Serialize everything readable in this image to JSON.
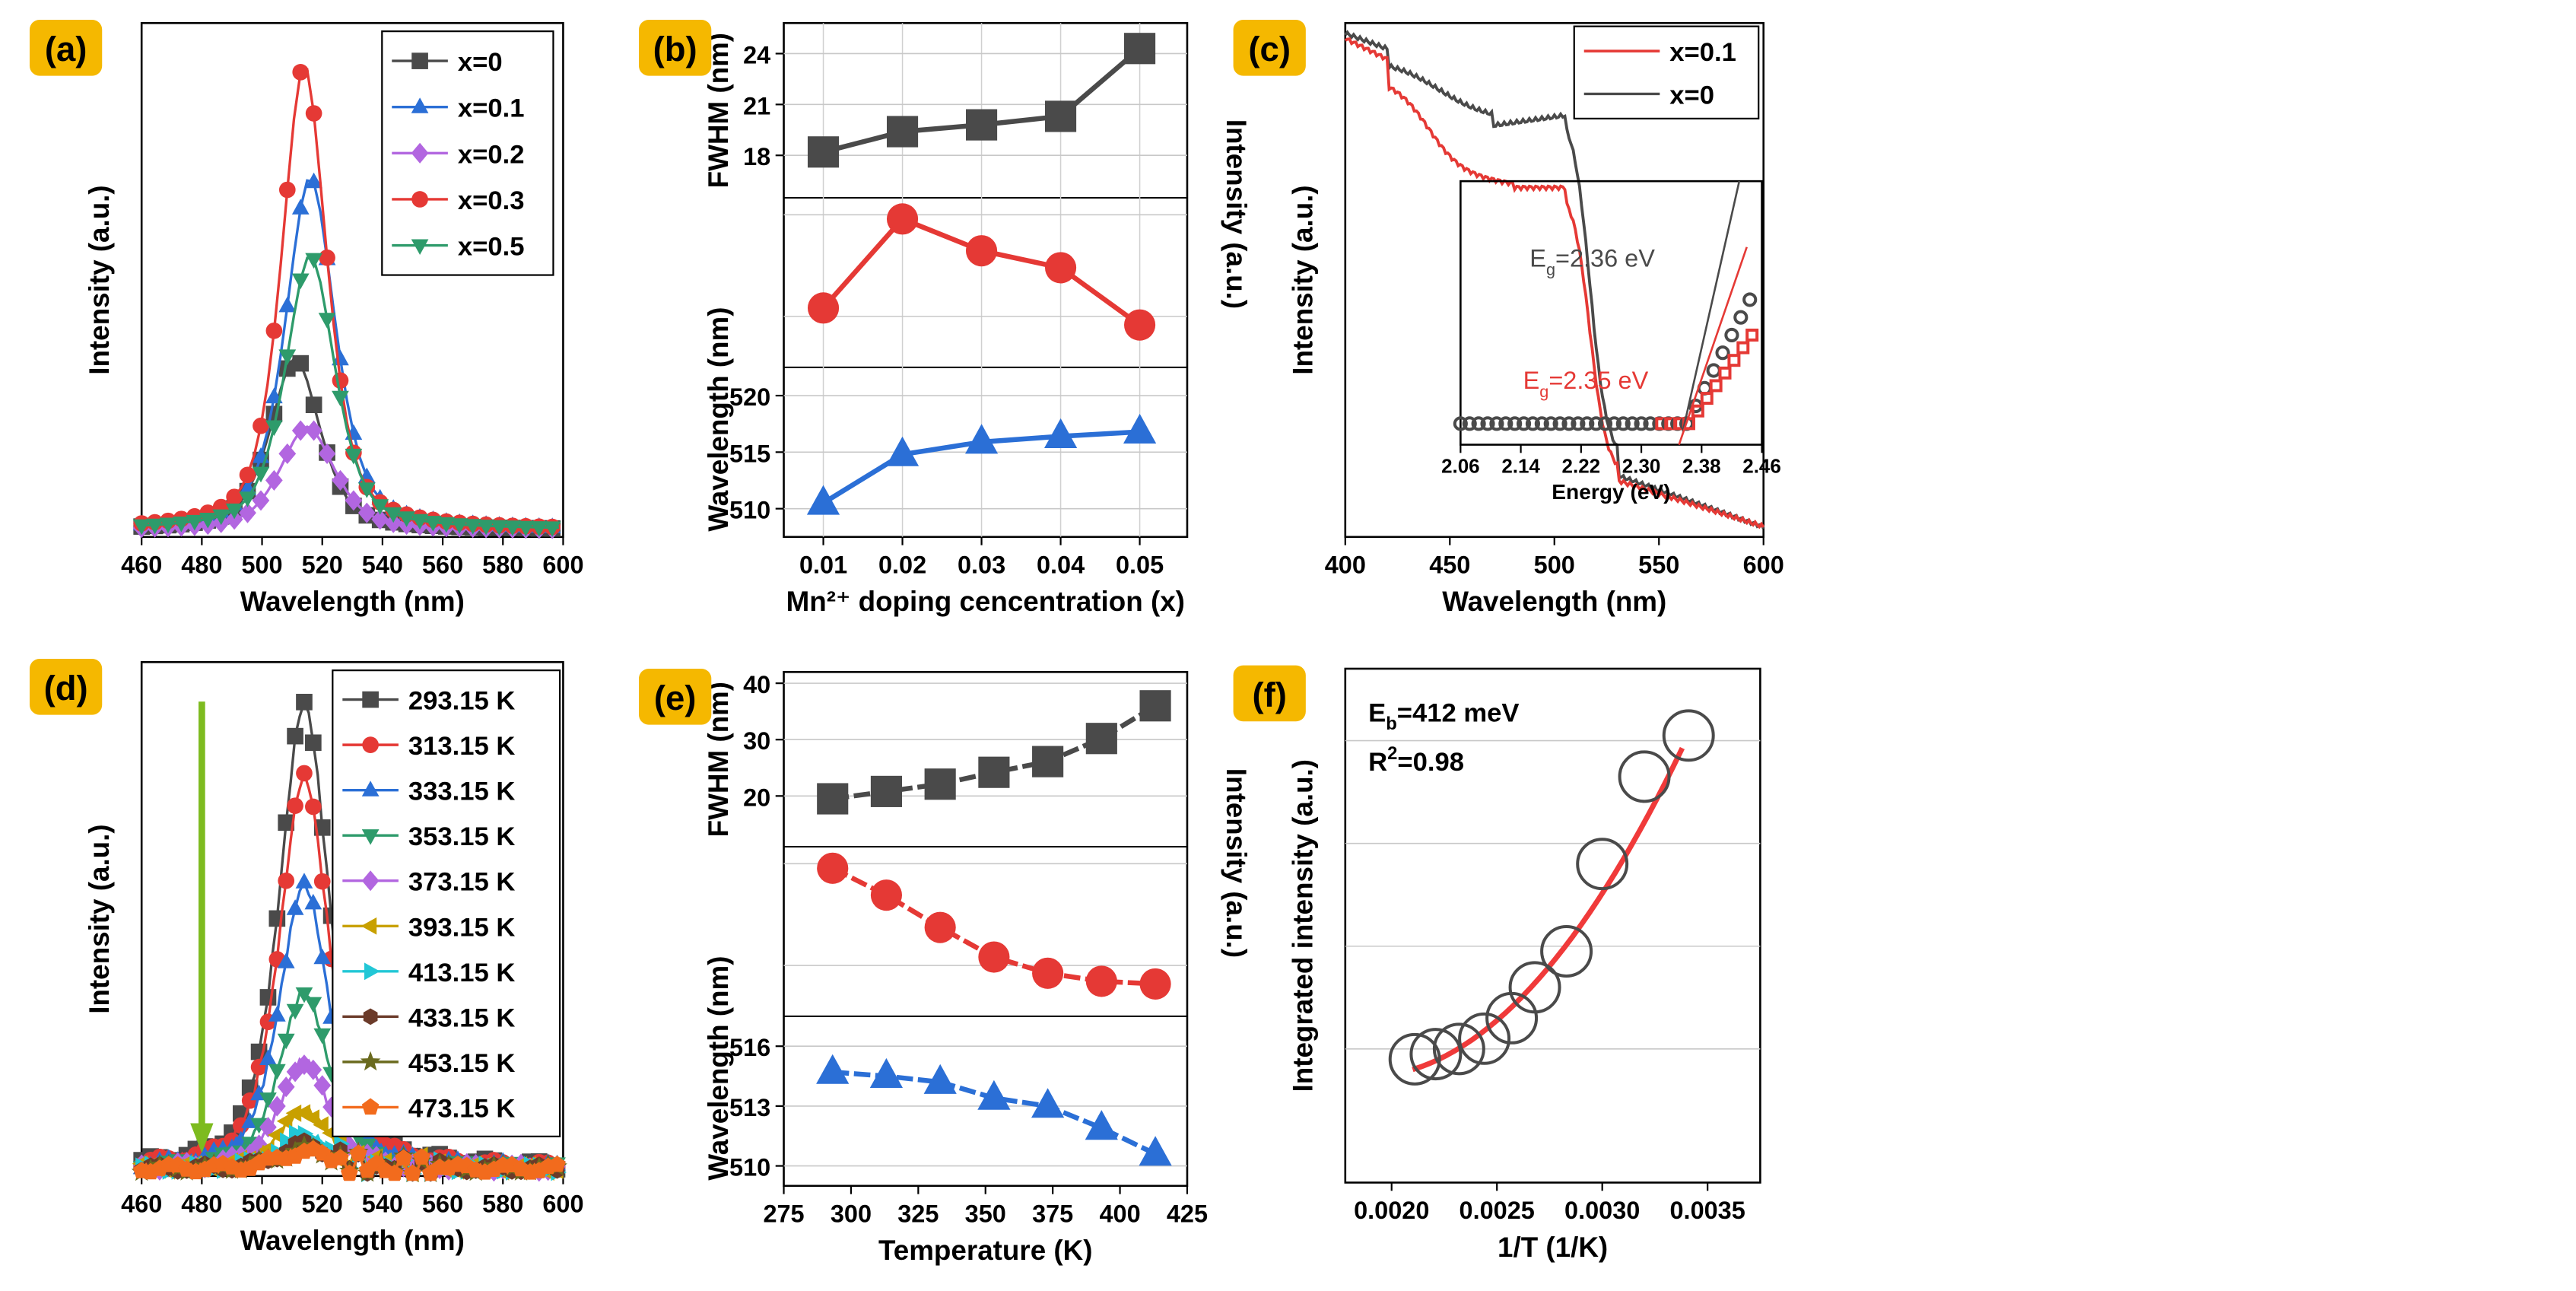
{
  "colors": {
    "black": "#4a4a4a",
    "blue": "#2b6fd6",
    "purple": "#b266e0",
    "red": "#e53935",
    "green": "#2e9b6b",
    "olive": "#c8a000",
    "cyan": "#22c7d6",
    "brown": "#6b3b2a",
    "darkolive": "#6a6a1e",
    "orange": "#f26b1d",
    "fit": "#f03a3a",
    "arrow": "#7dbb1f",
    "labelbg": "#f5b800"
  },
  "chart_data": [
    {
      "panel": "a",
      "label": "(a)",
      "type": "line",
      "xlabel": "Wavelength (nm)",
      "ylabel": "Intensity (a.u.)",
      "xlim": [
        460,
        600
      ],
      "ylim": [
        0,
        1.05
      ],
      "xticks": [
        "460",
        "480",
        "500",
        "520",
        "540",
        "560",
        "580",
        "600"
      ],
      "legend": "top-right",
      "series": [
        {
          "name": "x=0",
          "marker": "square",
          "color": "black",
          "peak": 0.35,
          "center": 511,
          "width": 11
        },
        {
          "name": "x=0.1",
          "marker": "triangle",
          "color": "blue",
          "peak": 0.72,
          "center": 516,
          "width": 11
        },
        {
          "name": "x=0.2",
          "marker": "diamond",
          "color": "purple",
          "peak": 0.21,
          "center": 515,
          "width": 12
        },
        {
          "name": "x=0.3",
          "marker": "circle",
          "color": "red",
          "peak": 0.95,
          "center": 514,
          "width": 10
        },
        {
          "name": "x=0.5",
          "marker": "tri-down",
          "color": "green",
          "peak": 0.56,
          "center": 516,
          "width": 11
        }
      ]
    },
    {
      "panel": "b",
      "label": "(b)",
      "type": "line",
      "xlabel": "Mn²⁺ doping cencentration (x)",
      "ylabel_left_top": "FWHM (nm)",
      "ylabel_left_bottom": "Wavelength (nm)",
      "ylabel_right": "Intensity (a.u.)",
      "x": [
        0.01,
        0.02,
        0.03,
        0.04,
        0.05
      ],
      "xticks": [
        "0.01",
        "0.02",
        "0.03",
        "0.04",
        "0.05"
      ],
      "xlim": [
        0.005,
        0.056
      ],
      "subplots": [
        {
          "name": "FWHM",
          "color": "black",
          "marker": "square",
          "values": [
            18.2,
            19.4,
            19.8,
            20.3,
            24.3
          ],
          "ylim": [
            15.5,
            25.8
          ],
          "yticks": [
            "18",
            "21",
            "24"
          ]
        },
        {
          "name": "Intensity",
          "color": "red",
          "marker": "circle",
          "values": [
            0.58,
            1.0,
            0.85,
            0.77,
            0.5
          ],
          "ylim": [
            0.3,
            1.1
          ],
          "yticks": []
        },
        {
          "name": "Wavelength",
          "color": "blue",
          "marker": "triangle",
          "values": [
            510.5,
            514.8,
            515.9,
            516.4,
            516.8
          ],
          "ylim": [
            507.5,
            522.5
          ],
          "yticks": [
            "510",
            "515",
            "520"
          ]
        }
      ]
    },
    {
      "panel": "c",
      "label": "(c)",
      "type": "line",
      "xlabel": "Wavelength (nm)",
      "ylabel": "Intensity (a.u.)",
      "xlim": [
        400,
        600
      ],
      "xticks": [
        "400",
        "450",
        "500",
        "550",
        "600"
      ],
      "legend": "top-right",
      "series": [
        {
          "name": "x=0.1",
          "color": "red"
        },
        {
          "name": "x=0",
          "color": "black"
        }
      ],
      "inset": {
        "xlabel": "Energy (eV)",
        "xlim": [
          2.06,
          2.46
        ],
        "xticks": [
          "2.06",
          "2.14",
          "2.22",
          "2.30",
          "2.38",
          "2.46"
        ],
        "annotations": [
          {
            "text": "Eg=2.36 eV",
            "main": "E",
            "sub": "g",
            "rest": "=2.36 eV",
            "color": "black"
          },
          {
            "text": "Eg=2.35 eV",
            "main": "E",
            "sub": "g",
            "rest": "=2.35 eV",
            "color": "red"
          }
        ]
      }
    },
    {
      "panel": "d",
      "label": "(d)",
      "type": "line",
      "xlabel": "Wavelength (nm)",
      "ylabel": "Intensity (a.u.)",
      "xlim": [
        460,
        600
      ],
      "ylim": [
        0,
        1.05
      ],
      "xticks": [
        "460",
        "480",
        "500",
        "520",
        "540",
        "560",
        "580",
        "600"
      ],
      "legend": "top-right",
      "series": [
        {
          "name": "293.15 K",
          "marker": "square",
          "color": "black",
          "peak": 0.95
        },
        {
          "name": "313.15 K",
          "marker": "circle",
          "color": "red",
          "peak": 0.8
        },
        {
          "name": "333.15 K",
          "marker": "triangle",
          "color": "blue",
          "peak": 0.58
        },
        {
          "name": "353.15 K",
          "marker": "tri-down",
          "color": "green",
          "peak": 0.36
        },
        {
          "name": "373.15 K",
          "marker": "diamond",
          "color": "purple",
          "peak": 0.22
        },
        {
          "name": "393.15 K",
          "marker": "tri-left",
          "color": "olive",
          "peak": 0.12
        },
        {
          "name": "413.15 K",
          "marker": "tri-right",
          "color": "cyan",
          "peak": 0.07
        },
        {
          "name": "433.15 K",
          "marker": "hexagon",
          "color": "brown",
          "peak": 0.05
        },
        {
          "name": "453.15 K",
          "marker": "star",
          "color": "darkolive",
          "peak": 0.04
        },
        {
          "name": "473.15 K",
          "marker": "pentagon",
          "color": "orange",
          "peak": 0.035
        }
      ]
    },
    {
      "panel": "e",
      "label": "(e)",
      "type": "line",
      "xlabel": "Temperature (K)",
      "ylabel_left_top": "FWHM (nm)",
      "ylabel_left_bottom": "Wavelength (nm)",
      "ylabel_right": "Intensity (a.u.)",
      "x": [
        293.15,
        313.15,
        333.15,
        353.15,
        373.15,
        393.15,
        413.15
      ],
      "xticks": [
        "275",
        "300",
        "325",
        "350",
        "375",
        "400",
        "425"
      ],
      "xlim": [
        275,
        425
      ],
      "subplots": [
        {
          "name": "FWHM",
          "color": "black",
          "marker": "square",
          "values": [
            19.5,
            20.8,
            22.1,
            24.2,
            26.1,
            30.2,
            36.0
          ],
          "ylim": [
            11,
            42
          ],
          "yticks": [
            "20",
            "30",
            "40"
          ]
        },
        {
          "name": "Intensity",
          "color": "red",
          "marker": "circle",
          "values": [
            1.0,
            0.9,
            0.78,
            0.67,
            0.61,
            0.58,
            0.57
          ],
          "ylim": [
            0.45,
            1.08
          ],
          "yticks": []
        },
        {
          "name": "Wavelength",
          "color": "blue",
          "marker": "triangle",
          "values": [
            514.7,
            514.5,
            514.2,
            513.4,
            513.0,
            511.9,
            510.6
          ],
          "ylim": [
            509,
            517.5
          ],
          "yticks": [
            "510",
            "513",
            "516"
          ]
        }
      ]
    },
    {
      "panel": "f",
      "label": "(f)",
      "type": "scatter",
      "xlabel": "1/T (1/K)",
      "ylabel": "Integrated intensity (a.u.)",
      "xlim": [
        0.00178,
        0.00375
      ],
      "ylim": [
        0,
        1
      ],
      "xticks": [
        "0.0020",
        "0.0025",
        "0.0030",
        "0.0035"
      ],
      "annotation_eb": "Eb=412 meV",
      "eb_main": "E",
      "eb_sub": "b",
      "eb_rest": "=412 meV",
      "annotation_r2": "R2=0.98",
      "r2_main": "R",
      "r2_sup": "2",
      "r2_rest": "=0.98",
      "x": [
        0.00211,
        0.00221,
        0.00232,
        0.00244,
        0.00257,
        0.00268,
        0.00283,
        0.003,
        0.0032,
        0.00341
      ],
      "y": [
        0.24,
        0.25,
        0.26,
        0.28,
        0.32,
        0.38,
        0.45,
        0.62,
        0.79,
        0.87
      ]
    }
  ]
}
